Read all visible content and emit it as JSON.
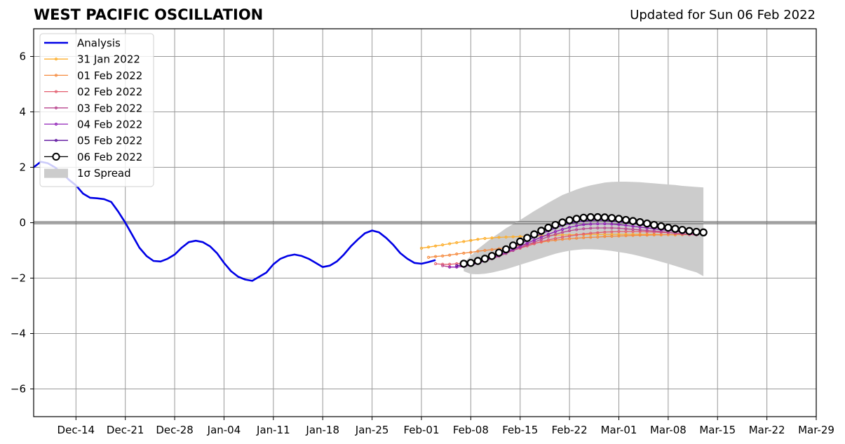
{
  "chart_data": {
    "type": "line",
    "title": "WEST PACIFIC OSCILLATION",
    "subtitle": "Updated for Sun 06 Feb 2022",
    "xlabel": "",
    "ylabel": "",
    "x_range": [
      "2021-12-08",
      "2022-03-29"
    ],
    "ylim": [
      -7,
      7
    ],
    "grid": true,
    "legend_position": "upper left",
    "x_ticks": [
      "Dec-14",
      "Dec-21",
      "Dec-28",
      "Jan-04",
      "Jan-11",
      "Jan-18",
      "Jan-25",
      "Feb-01",
      "Feb-08",
      "Feb-15",
      "Feb-22",
      "Mar-01",
      "Mar-08",
      "Mar-15",
      "Mar-22",
      "Mar-29"
    ],
    "x_tick_dates": [
      "2021-12-14",
      "2021-12-21",
      "2021-12-28",
      "2022-01-04",
      "2022-01-11",
      "2022-01-18",
      "2022-01-25",
      "2022-02-01",
      "2022-02-08",
      "2022-02-15",
      "2022-02-22",
      "2022-03-01",
      "2022-03-08",
      "2022-03-15",
      "2022-03-22",
      "2022-03-29"
    ],
    "y_ticks": [
      "6",
      "4",
      "2",
      "0",
      "−2",
      "−4",
      "−6"
    ],
    "y_tick_values": [
      6,
      4,
      2,
      0,
      -2,
      -4,
      -6
    ],
    "series": [
      {
        "name": "Analysis",
        "color": "#0000e6",
        "start": "2021-12-08",
        "values": [
          2.0,
          2.2,
          2.15,
          2.0,
          1.8,
          1.55,
          1.35,
          1.05,
          0.9,
          0.88,
          0.85,
          0.75,
          0.4,
          0.0,
          -0.45,
          -0.9,
          -1.2,
          -1.38,
          -1.4,
          -1.3,
          -1.15,
          -0.9,
          -0.7,
          -0.65,
          -0.7,
          -0.85,
          -1.1,
          -1.45,
          -1.75,
          -1.95,
          -2.05,
          -2.1,
          -1.95,
          -1.8,
          -1.5,
          -1.3,
          -1.2,
          -1.15,
          -1.2,
          -1.3,
          -1.45,
          -1.6,
          -1.55,
          -1.4,
          -1.15,
          -0.85,
          -0.6,
          -0.38,
          -0.28,
          -0.35,
          -0.55,
          -0.8,
          -1.1,
          -1.3,
          -1.45,
          -1.48,
          -1.42,
          -1.35
        ]
      },
      {
        "name": "31 Jan 2022",
        "color": "#fdae2b",
        "start": "2022-02-01",
        "values": [
          -0.92,
          -0.88,
          -0.84,
          -0.8,
          -0.76,
          -0.72,
          -0.68,
          -0.64,
          -0.6,
          -0.57,
          -0.55,
          -0.53,
          -0.52,
          -0.51,
          -0.5,
          -0.49,
          -0.48,
          -0.47,
          -0.46,
          -0.45,
          -0.44,
          -0.44,
          -0.43,
          -0.43,
          -0.42,
          -0.42,
          -0.42,
          -0.42,
          -0.42,
          -0.42,
          -0.42,
          -0.42,
          -0.42,
          -0.42,
          -0.43,
          -0.43,
          -0.44
        ]
      },
      {
        "name": "01 Feb 2022",
        "color": "#f58a3e",
        "start": "2022-02-02",
        "values": [
          -1.25,
          -1.22,
          -1.2,
          -1.17,
          -1.13,
          -1.1,
          -1.07,
          -1.03,
          -1.0,
          -0.97,
          -0.94,
          -0.9,
          -0.86,
          -0.82,
          -0.78,
          -0.74,
          -0.7,
          -0.66,
          -0.63,
          -0.6,
          -0.58,
          -0.56,
          -0.54,
          -0.53,
          -0.52,
          -0.5,
          -0.49,
          -0.48,
          -0.47,
          -0.46,
          -0.45,
          -0.45,
          -0.44,
          -0.44,
          -0.43,
          -0.43,
          -0.43,
          -0.43,
          -0.43
        ]
      },
      {
        "name": "02 Feb 2022",
        "color": "#e35d6e",
        "start": "2022-02-03",
        "values": [
          -1.48,
          -1.5,
          -1.5,
          -1.48,
          -1.45,
          -1.42,
          -1.38,
          -1.32,
          -1.25,
          -1.17,
          -1.08,
          -1.0,
          -0.92,
          -0.84,
          -0.76,
          -0.68,
          -0.62,
          -0.57,
          -0.52,
          -0.48,
          -0.44,
          -0.41,
          -0.38,
          -0.36,
          -0.34,
          -0.33,
          -0.32,
          -0.32,
          -0.32,
          -0.32,
          -0.33,
          -0.34,
          -0.35,
          -0.36,
          -0.38,
          -0.4,
          -0.42,
          -0.44
        ]
      },
      {
        "name": "03 Feb 2022",
        "color": "#b8448e",
        "start": "2022-02-04",
        "values": [
          -1.55,
          -1.6,
          -1.6,
          -1.57,
          -1.52,
          -1.45,
          -1.38,
          -1.3,
          -1.21,
          -1.11,
          -1.0,
          -0.9,
          -0.8,
          -0.7,
          -0.6,
          -0.5,
          -0.42,
          -0.35,
          -0.29,
          -0.25,
          -0.22,
          -0.2,
          -0.19,
          -0.19,
          -0.19,
          -0.2,
          -0.22,
          -0.24,
          -0.26,
          -0.28,
          -0.3,
          -0.32,
          -0.35,
          -0.38,
          -0.4,
          -0.42,
          -0.44
        ]
      },
      {
        "name": "04 Feb 2022",
        "color": "#8f1fb6",
        "start": "2022-02-05",
        "values": [
          -1.6,
          -1.6,
          -1.58,
          -1.53,
          -1.46,
          -1.38,
          -1.28,
          -1.18,
          -1.07,
          -0.96,
          -0.85,
          -0.74,
          -0.63,
          -0.52,
          -0.42,
          -0.32,
          -0.24,
          -0.17,
          -0.11,
          -0.07,
          -0.05,
          -0.04,
          -0.04,
          -0.05,
          -0.07,
          -0.1,
          -0.13,
          -0.16,
          -0.19,
          -0.22,
          -0.25,
          -0.28,
          -0.31,
          -0.34,
          -0.37,
          -0.4
        ]
      },
      {
        "name": "05 Feb 2022",
        "color": "#5a0d9c",
        "start": "2022-02-06",
        "values": [
          -1.55,
          -1.52,
          -1.47,
          -1.4,
          -1.32,
          -1.22,
          -1.12,
          -1.0,
          -0.88,
          -0.76,
          -0.64,
          -0.52,
          -0.4,
          -0.29,
          -0.19,
          -0.1,
          -0.03,
          0.02,
          0.06,
          0.08,
          0.09,
          0.08,
          0.06,
          0.03,
          0.0,
          -0.03,
          -0.07,
          -0.11,
          -0.15,
          -0.19,
          -0.23,
          -0.27,
          -0.3,
          -0.34,
          -0.37
        ]
      },
      {
        "name": "06 Feb 2022",
        "color": "#000000",
        "start": "2022-02-07",
        "values": [
          -1.48,
          -1.45,
          -1.38,
          -1.3,
          -1.2,
          -1.08,
          -0.96,
          -0.82,
          -0.68,
          -0.55,
          -0.42,
          -0.29,
          -0.18,
          -0.08,
          0.01,
          0.09,
          0.14,
          0.18,
          0.2,
          0.2,
          0.19,
          0.17,
          0.14,
          0.1,
          0.06,
          0.02,
          -0.03,
          -0.08,
          -0.13,
          -0.18,
          -0.22,
          -0.26,
          -0.3,
          -0.33,
          -0.35
        ]
      },
      {
        "name": "1σ Spread",
        "color": "#cccccc",
        "start": "2022-02-07",
        "upper": [
          -1.45,
          -1.2,
          -0.95,
          -0.75,
          -0.55,
          -0.38,
          -0.2,
          -0.05,
          0.1,
          0.26,
          0.42,
          0.57,
          0.72,
          0.86,
          1.0,
          1.1,
          1.2,
          1.28,
          1.35,
          1.4,
          1.45,
          1.47,
          1.48,
          1.48,
          1.47,
          1.46,
          1.44,
          1.42,
          1.4,
          1.38,
          1.36,
          1.33,
          1.31,
          1.29,
          1.27
        ],
        "lower": [
          -1.75,
          -1.85,
          -1.86,
          -1.84,
          -1.8,
          -1.74,
          -1.68,
          -1.6,
          -1.52,
          -1.44,
          -1.36,
          -1.28,
          -1.2,
          -1.12,
          -1.06,
          -1.01,
          -0.98,
          -0.96,
          -0.96,
          -0.97,
          -0.99,
          -1.02,
          -1.06,
          -1.1,
          -1.15,
          -1.21,
          -1.27,
          -1.34,
          -1.41,
          -1.48,
          -1.56,
          -1.64,
          -1.72,
          -1.79,
          -1.93
        ]
      }
    ]
  }
}
